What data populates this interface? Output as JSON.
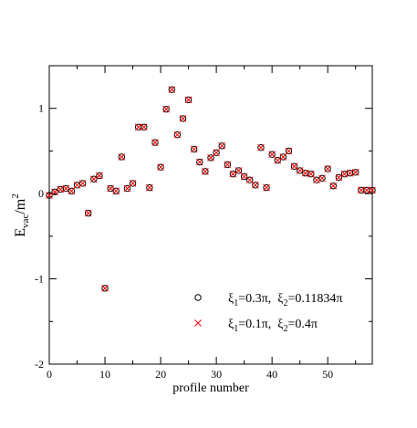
{
  "chart_data": {
    "type": "scatter",
    "title": "",
    "xlabel": "profile number",
    "ylabel": {
      "base": "E",
      "sub": "vac",
      "rest": "/m",
      "sup": "2"
    },
    "xlim": [
      0,
      58
    ],
    "ylim": [
      -2,
      1.5
    ],
    "xticks": [
      0,
      10,
      20,
      30,
      40,
      50
    ],
    "yticks": [
      -2,
      -1,
      0,
      1
    ],
    "grid": false,
    "legend_position": "bottom-right",
    "colors": {
      "series_1": "#000000",
      "series_2": "#ff0000",
      "axes": "#000000"
    },
    "series": [
      {
        "name": "ξ1=0.3π,  ξ2=0.11834π",
        "legend_parts": {
          "a": "ξ",
          "a_sub": "1",
          "a_val": "=0.3π,  ",
          "b": "ξ",
          "b_sub": "2",
          "b_val": "=0.11834π"
        },
        "marker": "circle"
      },
      {
        "name": "ξ1=0.1π,  ξ2=0.4π",
        "legend_parts": {
          "a": "ξ",
          "a_sub": "1",
          "a_val": "=0.1π,  ",
          "b": "ξ",
          "b_sub": "2",
          "b_val": "=0.4π"
        },
        "marker": "x"
      }
    ],
    "x": [
      0,
      1,
      2,
      3,
      4,
      5,
      6,
      7,
      8,
      9,
      10,
      11,
      12,
      13,
      14,
      15,
      16,
      17,
      18,
      19,
      20,
      21,
      22,
      23,
      24,
      25,
      26,
      27,
      28,
      29,
      30,
      31,
      32,
      33,
      34,
      35,
      36,
      37,
      38,
      39,
      40,
      41,
      42,
      43,
      44,
      45,
      46,
      47,
      48,
      49,
      50,
      51,
      52,
      53,
      54,
      55,
      56,
      57,
      58
    ],
    "y": [
      -0.02,
      0.02,
      0.05,
      0.06,
      0.03,
      0.1,
      0.12,
      -0.23,
      0.17,
      0.21,
      -1.11,
      0.06,
      0.03,
      0.43,
      0.06,
      0.12,
      0.78,
      0.78,
      0.07,
      0.6,
      0.31,
      0.99,
      1.22,
      0.69,
      0.88,
      1.1,
      0.52,
      0.37,
      0.26,
      0.42,
      0.48,
      0.56,
      0.34,
      0.23,
      0.27,
      0.2,
      0.16,
      0.1,
      0.54,
      0.07,
      0.46,
      0.39,
      0.43,
      0.5,
      0.32,
      0.27,
      0.24,
      0.23,
      0.16,
      0.18,
      0.29,
      0.09,
      0.19,
      0.23,
      0.24,
      0.25,
      0.04,
      0.04,
      0.04
    ]
  }
}
